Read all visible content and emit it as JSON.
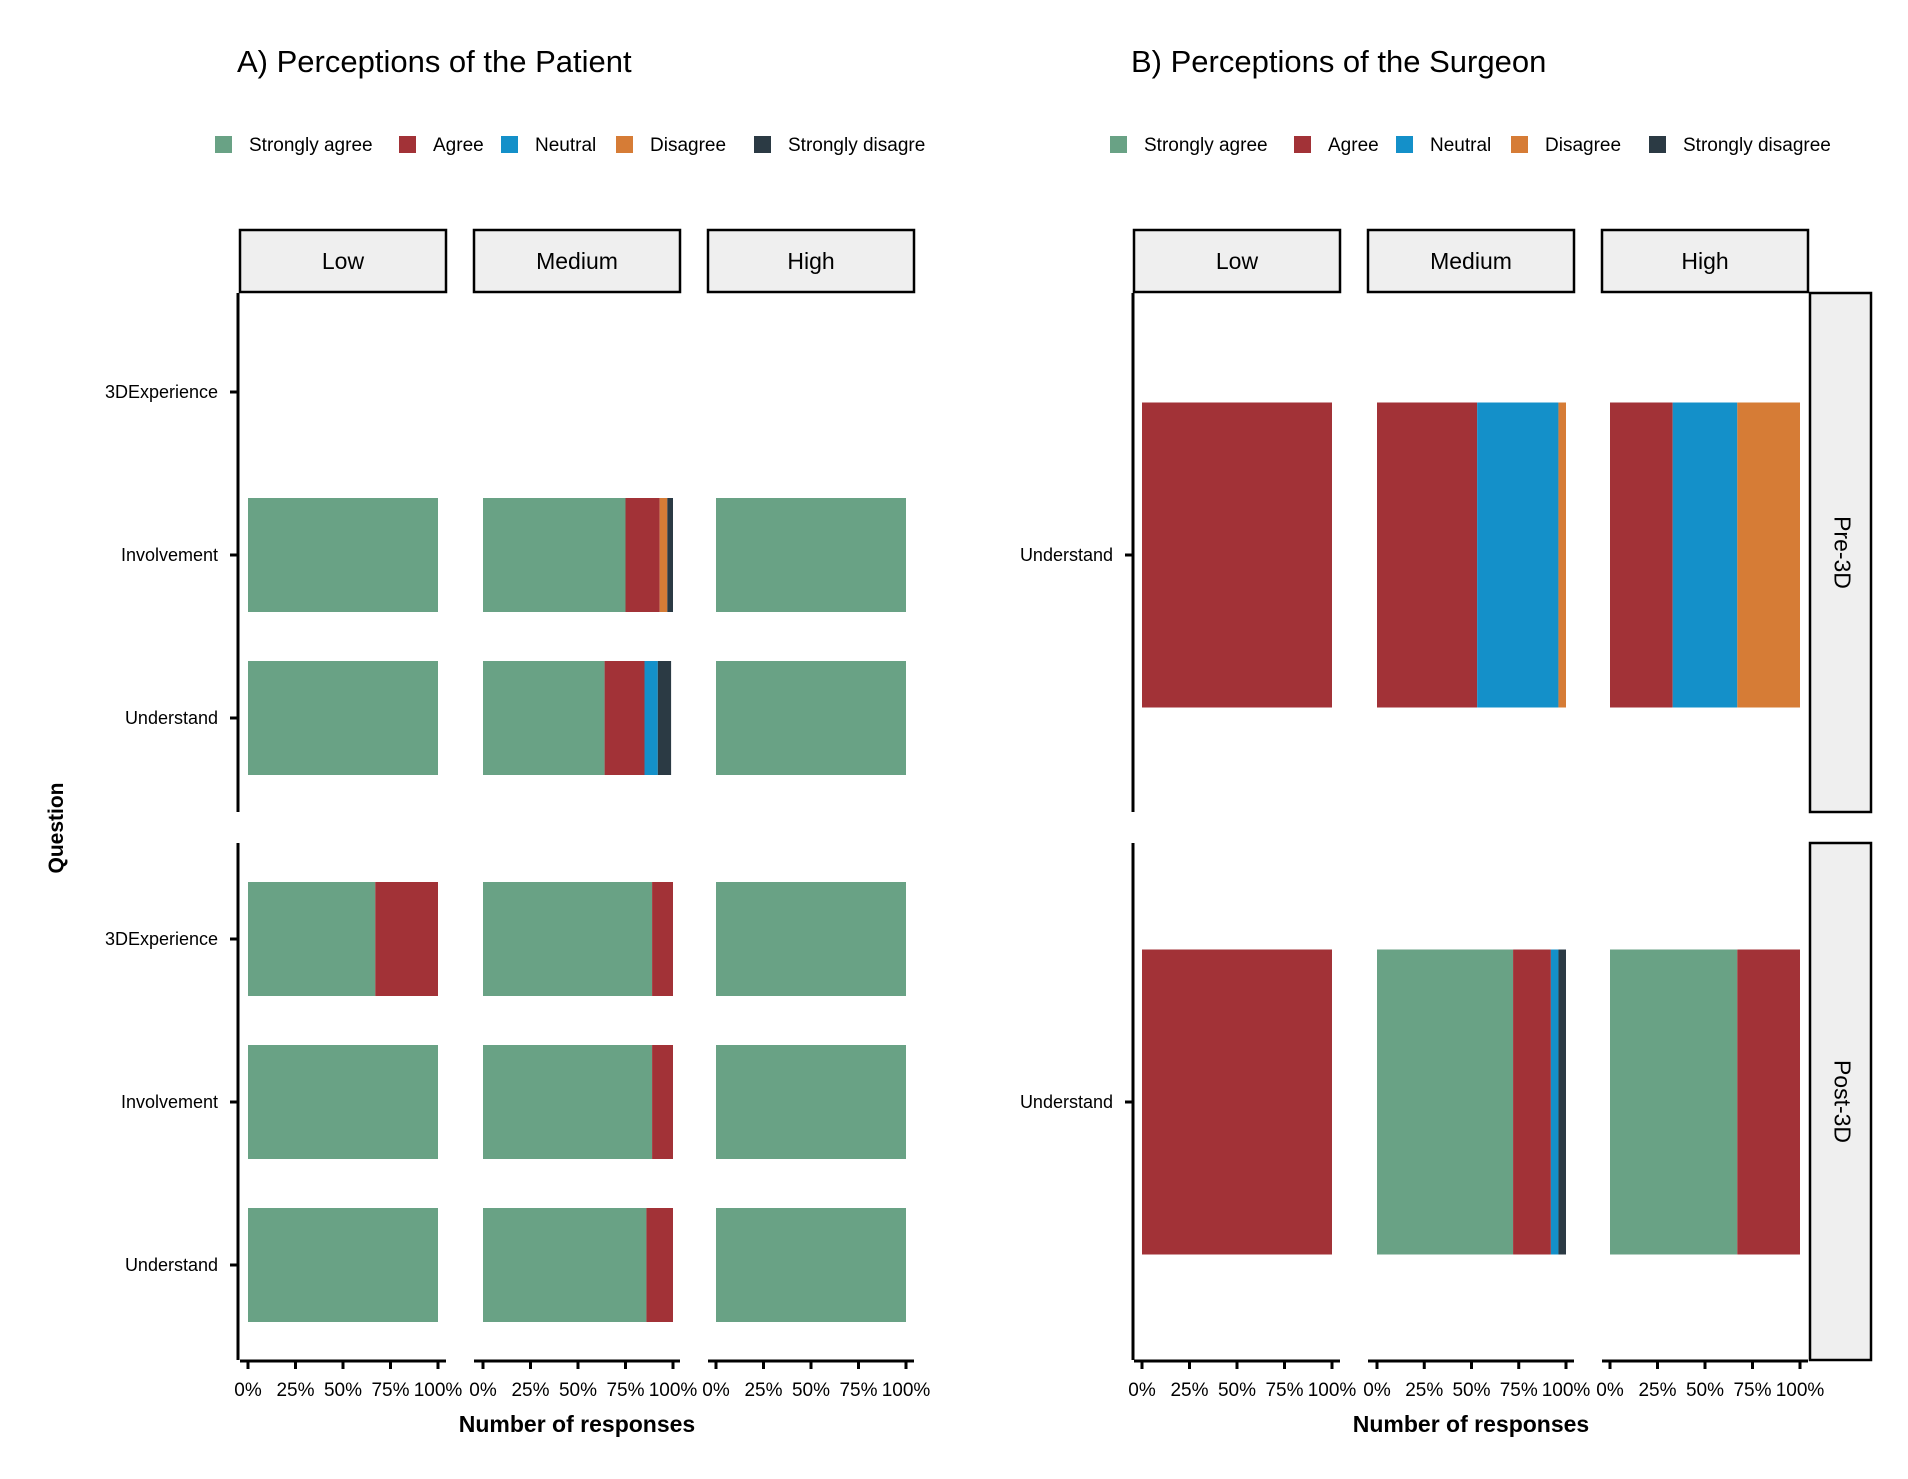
{
  "chart_data": [
    {
      "type": "bar",
      "orientation": "horizontal",
      "stacked": true,
      "normalized": true,
      "title": "A) Perceptions of the Patient",
      "xlabel": "Number of responses",
      "ylabel": "Question",
      "xlim": [
        0,
        100
      ],
      "x_ticks": [
        "0%",
        "25%",
        "50%",
        "75%",
        "100%"
      ],
      "legend_position": "top",
      "legend": [
        "Strongly agree",
        "Agree",
        "Neutral",
        "Disagree",
        "Strongly disagre"
      ],
      "facet_columns": [
        "Low",
        "Medium",
        "High"
      ],
      "facet_rows": [
        "Pre-3D",
        "Post-3D"
      ],
      "row_strips_visible": false,
      "questions": [
        "3DExperience",
        "Involvement",
        "Understand"
      ],
      "panels": [
        {
          "row": "Pre-3D",
          "bars": [
            {
              "question": "3DExperience",
              "values": {
                "Low": null,
                "Medium": null,
                "High": null
              }
            },
            {
              "question": "Involvement",
              "values": {
                "Low": [
                  100,
                  0,
                  0,
                  0,
                  0
                ],
                "Medium": [
                  75,
                  18,
                  0,
                  4,
                  3
                ],
                "High": [
                  100,
                  0,
                  0,
                  0,
                  0
                ]
              }
            },
            {
              "question": "Understand",
              "values": {
                "Low": [
                  100,
                  0,
                  0,
                  0,
                  0
                ],
                "Medium": [
                  64,
                  21,
                  7,
                  0,
                  7
                ],
                "High": [
                  100,
                  0,
                  0,
                  0,
                  0
                ]
              }
            }
          ]
        },
        {
          "row": "Post-3D",
          "bars": [
            {
              "question": "3DExperience",
              "values": {
                "Low": [
                  67,
                  33,
                  0,
                  0,
                  0
                ],
                "Medium": [
                  89,
                  11,
                  0,
                  0,
                  0
                ],
                "High": [
                  100,
                  0,
                  0,
                  0,
                  0
                ]
              }
            },
            {
              "question": "Involvement",
              "values": {
                "Low": [
                  100,
                  0,
                  0,
                  0,
                  0
                ],
                "Medium": [
                  89,
                  11,
                  0,
                  0,
                  0
                ],
                "High": [
                  100,
                  0,
                  0,
                  0,
                  0
                ]
              }
            },
            {
              "question": "Understand",
              "values": {
                "Low": [
                  100,
                  0,
                  0,
                  0,
                  0
                ],
                "Medium": [
                  86,
                  14,
                  0,
                  0,
                  0
                ],
                "High": [
                  100,
                  0,
                  0,
                  0,
                  0
                ]
              }
            }
          ]
        }
      ]
    },
    {
      "type": "bar",
      "orientation": "horizontal",
      "stacked": true,
      "normalized": true,
      "title": "B) Perceptions of the Surgeon",
      "xlabel": "Number of responses",
      "ylabel": "",
      "xlim": [
        0,
        100
      ],
      "x_ticks": [
        "0%",
        "25%",
        "50%",
        "75%",
        "100%"
      ],
      "legend_position": "top",
      "legend": [
        "Strongly agree",
        "Agree",
        "Neutral",
        "Disagree",
        "Strongly disagree"
      ],
      "facet_columns": [
        "Low",
        "Medium",
        "High"
      ],
      "facet_rows": [
        "Pre-3D",
        "Post-3D"
      ],
      "row_strips_visible": true,
      "questions": [
        "Understand"
      ],
      "panels": [
        {
          "row": "Pre-3D",
          "bars": [
            {
              "question": "Understand",
              "values": {
                "Low": [
                  0,
                  100,
                  0,
                  0,
                  0
                ],
                "Medium": [
                  0,
                  53,
                  43,
                  4,
                  0
                ],
                "High": [
                  0,
                  33,
                  34,
                  33,
                  0
                ]
              }
            }
          ]
        },
        {
          "row": "Post-3D",
          "bars": [
            {
              "question": "Understand",
              "values": {
                "Low": [
                  0,
                  100,
                  0,
                  0,
                  0
                ],
                "Medium": [
                  72,
                  20,
                  4,
                  0,
                  4
                ],
                "High": [
                  67,
                  33,
                  0,
                  0,
                  0
                ]
              }
            }
          ]
        }
      ]
    }
  ],
  "colors": {
    "Strongly agree": "#69a285",
    "Agree": "#a23237",
    "Neutral": "#1490c9",
    "Disagree": "#d67c36",
    "Strongly disagree": "#2b3a44",
    "strip_fill": "#efefef"
  }
}
